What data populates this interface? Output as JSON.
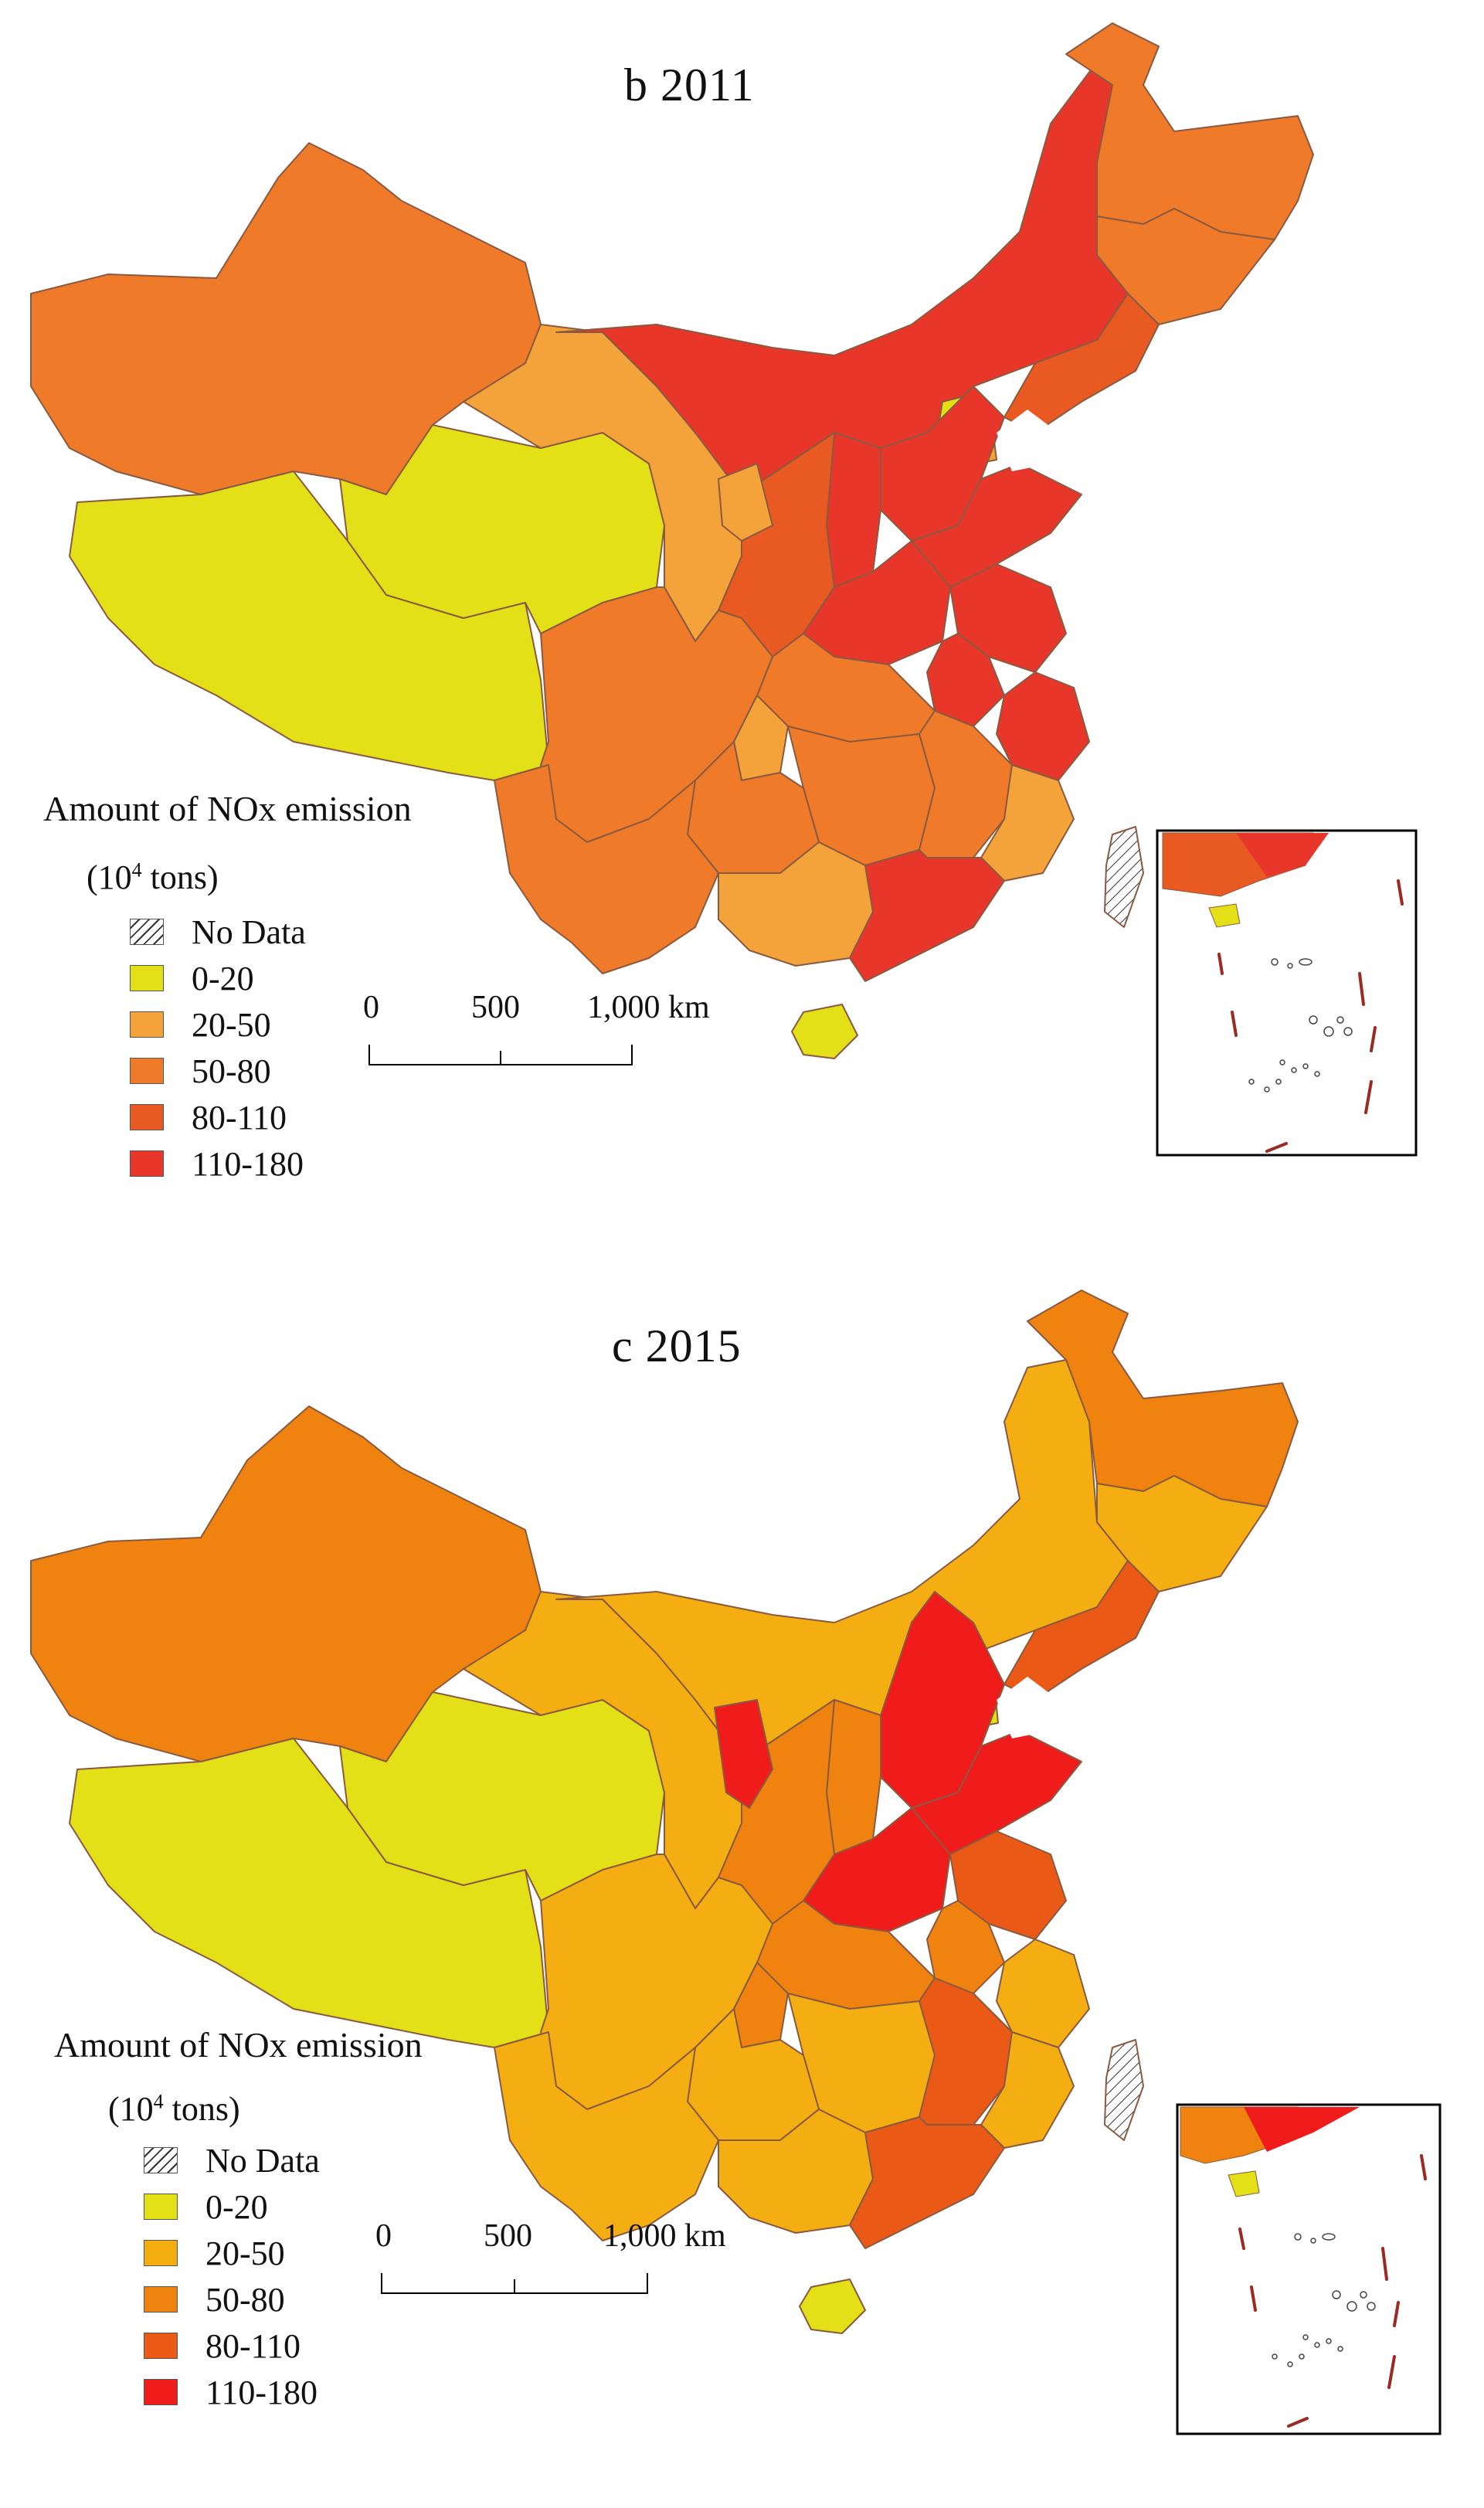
{
  "panels": [
    {
      "title": "b  2011",
      "legend_title": "Amount of NOx emission",
      "legend_unit_pre": "(10",
      "legend_unit_sup": "4",
      "legend_unit_post": " tons)",
      "legend": [
        {
          "label": "No Data",
          "color": "hatch"
        },
        {
          "label": "0-20",
          "color": "#e4e017"
        },
        {
          "label": "20-50",
          "color": "#f3a33a"
        },
        {
          "label": "50-80",
          "color": "#ef7a2a"
        },
        {
          "label": "80-110",
          "color": "#e85a22"
        },
        {
          "label": "110-180",
          "color": "#e8372a"
        }
      ],
      "scale": {
        "labels": [
          "0",
          "500",
          "1,000 km"
        ]
      }
    },
    {
      "title": "c  2015",
      "legend_title": "Amount of NOx emission",
      "legend_unit_pre": "(10",
      "legend_unit_sup": "4",
      "legend_unit_post": " tons)",
      "legend": [
        {
          "label": "No Data",
          "color": "hatch"
        },
        {
          "label": "0-20",
          "color": "#e4e017"
        },
        {
          "label": "20-50",
          "color": "#f5ae12"
        },
        {
          "label": "50-80",
          "color": "#f0820f"
        },
        {
          "label": "80-110",
          "color": "#ea5a16"
        },
        {
          "label": "110-180",
          "color": "#f01b1b"
        }
      ],
      "scale": {
        "labels": [
          "0",
          "500",
          "1,000 km"
        ]
      }
    }
  ]
}
